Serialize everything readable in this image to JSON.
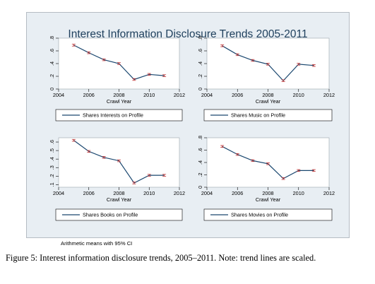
{
  "figure": {
    "title": "Interest Information Disclosure Trends 2005-2011",
    "note": "Arithmetic means with 95% CI",
    "caption": "Figure 5: Interest information disclosure trends, 2005–2011. Note: trend lines are scaled."
  },
  "colors": {
    "panel_background": "#e8eef3",
    "plot_background": "#ffffff",
    "title_text": "#1e3f5c",
    "series_line": "#1a476f",
    "error_bar": "#c03030"
  },
  "chart_data": [
    {
      "type": "line",
      "x": [
        2005,
        2006,
        2007,
        2008,
        2009,
        2010,
        2011
      ],
      "series": [
        {
          "name": "Shares Interests on Profile",
          "values": [
            0.69,
            0.57,
            0.46,
            0.4,
            0.15,
            0.23,
            0.21
          ]
        }
      ],
      "xlabel": "Crawl Year",
      "xlim": [
        2004,
        2012
      ],
      "xticks": [
        "2004",
        "2006",
        "2008",
        "2010",
        "2012"
      ],
      "ylim": [
        0,
        0.8
      ],
      "yticks": [
        "0",
        ".2",
        ".4",
        ".6",
        ".8"
      ],
      "legend_position": "bottom",
      "error_bars": "95% CI"
    },
    {
      "type": "line",
      "x": [
        2005,
        2006,
        2007,
        2008,
        2009,
        2010,
        2011
      ],
      "series": [
        {
          "name": "Shares Music on Profile",
          "values": [
            0.68,
            0.54,
            0.45,
            0.39,
            0.13,
            0.39,
            0.37
          ]
        }
      ],
      "xlabel": "Crawl Year",
      "xlim": [
        2004,
        2012
      ],
      "xticks": [
        "2004",
        "2006",
        "2008",
        "2010",
        "2012"
      ],
      "ylim": [
        0,
        0.8
      ],
      "yticks": [
        "0",
        ".2",
        ".4",
        ".6",
        ".8"
      ],
      "legend_position": "bottom",
      "error_bars": "95% CI"
    },
    {
      "type": "line",
      "x": [
        2005,
        2006,
        2007,
        2008,
        2009,
        2010,
        2011
      ],
      "series": [
        {
          "name": "Shares Books on Profile",
          "values": [
            0.62,
            0.49,
            0.42,
            0.38,
            0.12,
            0.21,
            0.21
          ]
        }
      ],
      "xlabel": "Crawl Year",
      "xlim": [
        2004,
        2012
      ],
      "xticks": [
        "2004",
        "2006",
        "2008",
        "2010",
        "2012"
      ],
      "ylim": [
        0.07,
        0.65
      ],
      "yticks": [
        ".1",
        ".2",
        ".3",
        ".4",
        ".5",
        ".6"
      ],
      "ytick_values": [
        0.1,
        0.2,
        0.3,
        0.4,
        0.5,
        0.6
      ],
      "legend_position": "bottom",
      "error_bars": "95% CI"
    },
    {
      "type": "line",
      "x": [
        2005,
        2006,
        2007,
        2008,
        2009,
        2010,
        2011
      ],
      "series": [
        {
          "name": "Shares Movies on Profile",
          "values": [
            0.66,
            0.53,
            0.43,
            0.38,
            0.14,
            0.27,
            0.27
          ]
        }
      ],
      "xlabel": "Crawl Year",
      "xlim": [
        2004,
        2012
      ],
      "xticks": [
        "2004",
        "2006",
        "2008",
        "2010",
        "2012"
      ],
      "ylim": [
        0,
        0.8
      ],
      "yticks": [
        "0",
        ".2",
        ".4",
        ".6",
        ".8"
      ],
      "legend_position": "bottom",
      "error_bars": "95% CI"
    }
  ]
}
